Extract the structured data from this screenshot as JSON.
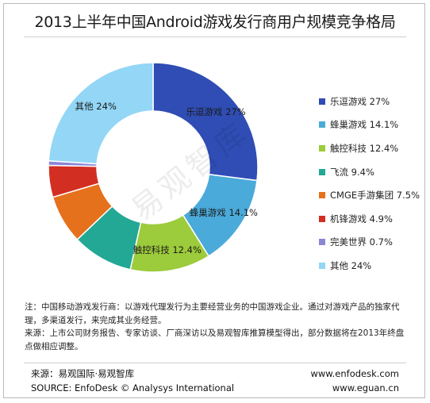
{
  "title": "2013上半年中国Android游戏发行商用户规模竞争格局",
  "chart_data": {
    "type": "pie",
    "donut": true,
    "title": "2013上半年中国Android游戏发行商用户规模竞争格局",
    "legend_position": "right",
    "slices": [
      {
        "name": "乐逗游戏",
        "value": 27,
        "display": "27%",
        "color": "#2f4db4"
      },
      {
        "name": "蜂巢游戏",
        "value": 14.1,
        "display": "14.1%",
        "color": "#4aaad9"
      },
      {
        "name": "触控科技",
        "value": 12.4,
        "display": "12.4%",
        "color": "#9ccb3b"
      },
      {
        "name": "飞流",
        "value": 9.4,
        "display": "9.4%",
        "color": "#23a895"
      },
      {
        "name": "CMGE手游集团",
        "value": 7.5,
        "display": "7.5%",
        "color": "#e6711c"
      },
      {
        "name": "机锋游戏",
        "value": 4.9,
        "display": "4.9%",
        "color": "#d32e22"
      },
      {
        "name": "完美世界",
        "value": 0.7,
        "display": "0.7%",
        "color": "#8b86d6"
      },
      {
        "name": "其他",
        "value": 24,
        "display": "24%",
        "color": "#93d6f5"
      }
    ],
    "data_labels": [
      "乐逗游戏 27%",
      "蜂巢游戏 14.1%",
      "触控科技 12.4%",
      "其他 24%"
    ]
  },
  "watermark": "易观智库",
  "notes": {
    "line1": "注：中国移动游戏发行商：以游戏代理发行为主要经营业务的中国游戏企业。通过对游戏产品的独家代理，多渠道发行，来完成其业务经营。",
    "line2": "来源：上市公司财务报告、专家访谈、厂商深访以及易观智库推算模型得出，部分数据将在2013年终盘点做相应调整。"
  },
  "footer": {
    "source_cn": "来源：易观国际·易观智库",
    "source_en": "SOURCE: EnfoDesk © Analysys International",
    "url1": "www.enfodesk.com",
    "url2": "www.eguan.cn"
  }
}
